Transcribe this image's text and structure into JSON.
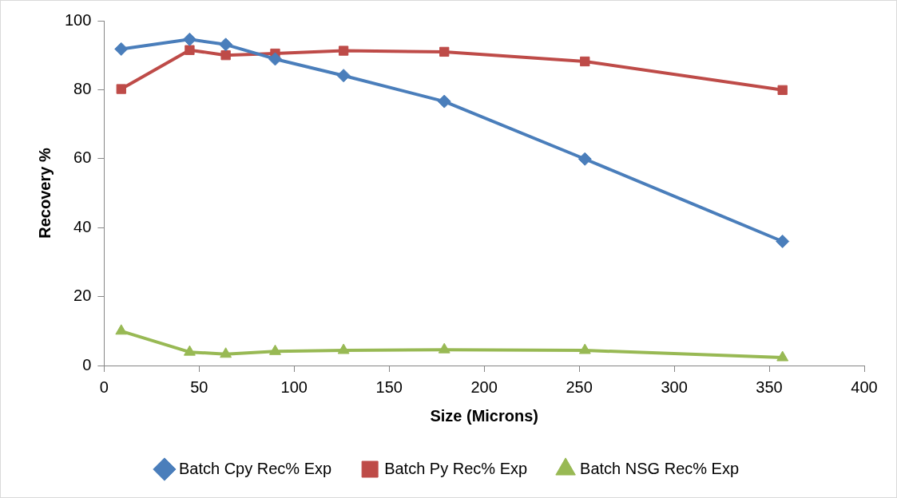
{
  "chart_data": {
    "type": "line",
    "xlabel": "Size (Microns)",
    "ylabel": "Recovery %",
    "x": [
      9,
      45,
      64,
      90,
      126,
      179,
      253,
      357
    ],
    "series": [
      {
        "name": "Batch Cpy Rec% Exp",
        "color": "#4a7ebb",
        "marker": "diamond",
        "values": [
          91.8,
          94.6,
          93.1,
          88.9,
          84.1,
          76.6,
          59.9,
          36.0
        ]
      },
      {
        "name": "Batch Py Rec% Exp",
        "color": "#be4b48",
        "marker": "square",
        "values": [
          80.2,
          91.5,
          90.0,
          90.5,
          91.3,
          91.0,
          88.2,
          79.9
        ]
      },
      {
        "name": "Batch NSG Rec% Exp",
        "color": "#98b954",
        "marker": "triangle",
        "values": [
          10.0,
          3.9,
          3.3,
          4.1,
          4.4,
          4.6,
          4.4,
          2.3
        ]
      }
    ],
    "xlim": [
      0,
      400
    ],
    "xticks": [
      0,
      50,
      100,
      150,
      200,
      250,
      300,
      350,
      400
    ],
    "ylim": [
      0,
      100
    ],
    "yticks": [
      0,
      20,
      40,
      60,
      80,
      100
    ],
    "grid": false,
    "legend": "bottom",
    "line_style": "solid"
  }
}
